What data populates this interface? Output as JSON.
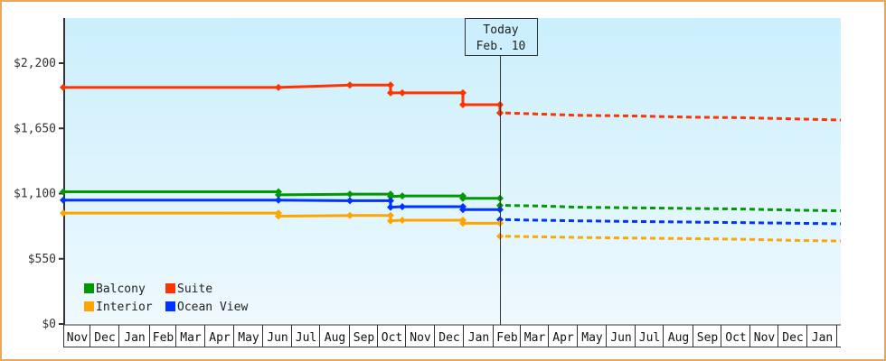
{
  "chart_data": {
    "type": "line",
    "title": "",
    "xlabel": "",
    "ylabel": "",
    "ylim": [
      0,
      2200
    ],
    "y_ticks": [
      "$0",
      "$550",
      "$1,100",
      "$1,650",
      "$2,200"
    ],
    "y_tick_values": [
      0,
      550,
      1100,
      1650,
      2200
    ],
    "x_tick_labels": [
      "Nov",
      "Dec",
      "Jan",
      "Feb",
      "Mar",
      "Apr",
      "May",
      "Jun",
      "Jul",
      "Aug",
      "Sep",
      "Oct",
      "Nov",
      "Dec",
      "Jan",
      "Feb",
      "Mar",
      "Apr",
      "May",
      "Jun",
      "Jul",
      "Aug",
      "Sep",
      "Oct",
      "Nov",
      "Dec",
      "Jan"
    ],
    "today_marker": {
      "line1": "Today",
      "line2": "Feb. 10"
    },
    "legend": [
      {
        "name": "Balcony",
        "color": "#009900"
      },
      {
        "name": "Suite",
        "color": "#ff3300"
      },
      {
        "name": "Interior",
        "color": "#ffa500"
      },
      {
        "name": "Ocean View",
        "color": "#0033ff"
      }
    ],
    "series": [
      {
        "name": "Suite",
        "color": "#ff3300",
        "historical": [
          [
            70,
            1995
          ],
          [
            308,
            1995
          ],
          [
            387,
            2015
          ],
          [
            432,
            2015
          ],
          [
            432,
            1950
          ],
          [
            445,
            1950
          ],
          [
            512,
            1950
          ],
          [
            512,
            1850
          ],
          [
            553,
            1850
          ],
          [
            553,
            1780
          ]
        ],
        "forecast": [
          [
            553,
            1780
          ],
          [
            600,
            1770
          ],
          [
            640,
            1760
          ],
          [
            700,
            1755
          ],
          [
            760,
            1745
          ],
          [
            820,
            1740
          ],
          [
            880,
            1730
          ],
          [
            930,
            1720
          ]
        ]
      },
      {
        "name": "Balcony",
        "color": "#009900",
        "historical": [
          [
            70,
            1115
          ],
          [
            308,
            1115
          ],
          [
            308,
            1090
          ],
          [
            387,
            1095
          ],
          [
            432,
            1095
          ],
          [
            432,
            1075
          ],
          [
            445,
            1080
          ],
          [
            512,
            1080
          ],
          [
            512,
            1060
          ],
          [
            553,
            1060
          ]
        ],
        "forecast": [
          [
            553,
            1000
          ],
          [
            600,
            995
          ],
          [
            640,
            985
          ],
          [
            700,
            980
          ],
          [
            760,
            975
          ],
          [
            820,
            970
          ],
          [
            880,
            960
          ],
          [
            930,
            955
          ]
        ]
      },
      {
        "name": "Ocean View",
        "color": "#0033ff",
        "historical": [
          [
            70,
            1045
          ],
          [
            308,
            1045
          ],
          [
            387,
            1040
          ],
          [
            432,
            1040
          ],
          [
            432,
            985
          ],
          [
            445,
            990
          ],
          [
            512,
            990
          ],
          [
            512,
            965
          ],
          [
            553,
            965
          ]
        ],
        "forecast": [
          [
            553,
            880
          ],
          [
            600,
            875
          ],
          [
            640,
            870
          ],
          [
            700,
            865
          ],
          [
            760,
            860
          ],
          [
            820,
            855
          ],
          [
            880,
            850
          ],
          [
            930,
            845
          ]
        ]
      },
      {
        "name": "Interior",
        "color": "#ffa500",
        "historical": [
          [
            70,
            935
          ],
          [
            308,
            935
          ],
          [
            308,
            910
          ],
          [
            387,
            915
          ],
          [
            432,
            915
          ],
          [
            432,
            870
          ],
          [
            445,
            875
          ],
          [
            512,
            875
          ],
          [
            512,
            850
          ],
          [
            553,
            850
          ]
        ],
        "forecast": [
          [
            553,
            740
          ],
          [
            600,
            735
          ],
          [
            640,
            730
          ],
          [
            700,
            725
          ],
          [
            760,
            720
          ],
          [
            820,
            715
          ],
          [
            880,
            705
          ],
          [
            930,
            700
          ]
        ]
      }
    ]
  }
}
